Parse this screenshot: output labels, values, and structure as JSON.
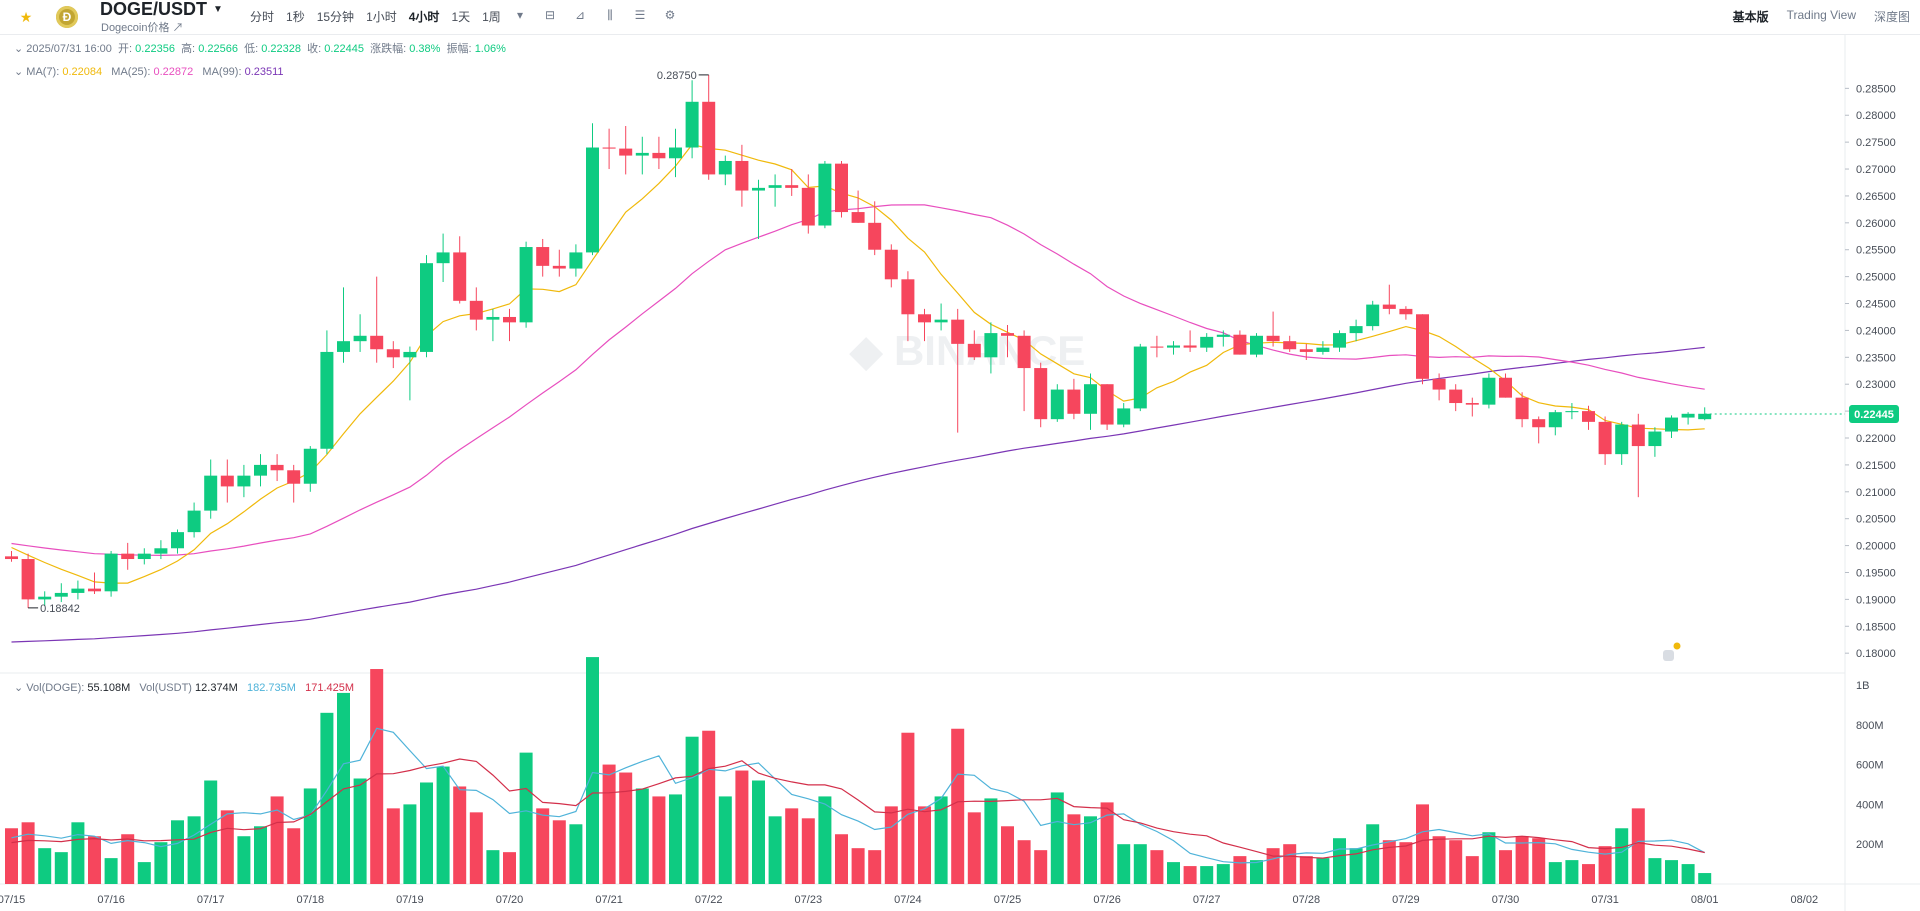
{
  "header": {
    "pair": "DOGE/USDT",
    "subtitle": "Dogecoin价格",
    "intervals": [
      "分时",
      "1秒",
      "15分钟",
      "1小时",
      "4小时",
      "1天",
      "1周"
    ],
    "active_interval": "4小时",
    "views": [
      "基本版",
      "Trading View",
      "深度图"
    ],
    "active_view": "基本版"
  },
  "ohlc_line": {
    "time": "2025/07/31 16:00",
    "open_label": "开:",
    "open": "0.22356",
    "high_label": "高:",
    "high": "0.22566",
    "low_label": "低:",
    "low": "0.22328",
    "close_label": "收:",
    "close": "0.22445",
    "change_label": "涨跌幅:",
    "change": "0.38%",
    "amp_label": "振幅:",
    "amp": "1.06%"
  },
  "ma_line": {
    "ma7_label": "MA(7):",
    "ma7": "0.22084",
    "ma25_label": "MA(25):",
    "ma25": "0.22872",
    "ma99_label": "MA(99):",
    "ma99": "0.23511"
  },
  "vol_line": {
    "vol_doge_label": "Vol(DOGE):",
    "vol_doge": "55.108M",
    "vol_usdt_label": "Vol(USDT)",
    "vol_usdt": "12.374M",
    "ma_a": "182.735M",
    "ma_b": "171.425M"
  },
  "colors": {
    "up": "#0ecb81",
    "down": "#f6465d",
    "ma7": "#f0b90b",
    "ma25": "#e84fbf",
    "ma99": "#7b36b5",
    "volma_a": "#4fb3d9",
    "volma_b": "#d32f4a"
  },
  "chart_data": {
    "type": "candlestick",
    "price_axis": {
      "ticks": [
        "0.28500",
        "0.28000",
        "0.27500",
        "0.27000",
        "0.26500",
        "0.26000",
        "0.25500",
        "0.25000",
        "0.24500",
        "0.24000",
        "0.23500",
        "0.23000",
        "0.22500",
        "0.22000",
        "0.21500",
        "0.21000",
        "0.20500",
        "0.20000",
        "0.19500",
        "0.19000",
        "0.18500",
        "0.18000"
      ],
      "range": [
        0.1765,
        0.2925
      ]
    },
    "current_price": "0.22445",
    "high_marker": "0.28750",
    "low_marker": "0.18842",
    "volume_axis": {
      "ticks": [
        "1B",
        "800M",
        "600M",
        "400M",
        "200M"
      ],
      "max": 1.05
    },
    "date_labels": [
      "07/15",
      "07/16",
      "07/17",
      "07/18",
      "07/19",
      "07/20",
      "07/21",
      "07/22",
      "07/23",
      "07/24",
      "07/25",
      "07/26",
      "07/27",
      "07/28",
      "07/29",
      "07/30",
      "07/31",
      "08/01",
      "08/02"
    ],
    "date_label_pos": [
      0,
      6,
      12,
      18,
      24,
      30,
      36,
      42,
      48,
      54,
      60,
      66,
      72,
      78,
      84,
      90,
      96,
      102,
      108
    ],
    "candles": [
      {
        "o": 0.198,
        "h": 0.199,
        "l": 0.197,
        "c": 0.1975,
        "v": 0.28
      },
      {
        "o": 0.1975,
        "h": 0.1985,
        "l": 0.1884,
        "c": 0.19,
        "v": 0.31
      },
      {
        "o": 0.19,
        "h": 0.1915,
        "l": 0.1888,
        "c": 0.1905,
        "v": 0.18
      },
      {
        "o": 0.1905,
        "h": 0.193,
        "l": 0.1895,
        "c": 0.1912,
        "v": 0.16
      },
      {
        "o": 0.1912,
        "h": 0.1935,
        "l": 0.19,
        "c": 0.192,
        "v": 0.31
      },
      {
        "o": 0.192,
        "h": 0.195,
        "l": 0.191,
        "c": 0.1915,
        "v": 0.24
      },
      {
        "o": 0.1915,
        "h": 0.199,
        "l": 0.1905,
        "c": 0.1985,
        "v": 0.13
      },
      {
        "o": 0.1985,
        "h": 0.2005,
        "l": 0.1955,
        "c": 0.1975,
        "v": 0.25
      },
      {
        "o": 0.1975,
        "h": 0.1995,
        "l": 0.1965,
        "c": 0.1985,
        "v": 0.11
      },
      {
        "o": 0.1985,
        "h": 0.201,
        "l": 0.1975,
        "c": 0.1995,
        "v": 0.21
      },
      {
        "o": 0.1995,
        "h": 0.203,
        "l": 0.1985,
        "c": 0.2025,
        "v": 0.32
      },
      {
        "o": 0.2025,
        "h": 0.208,
        "l": 0.2015,
        "c": 0.2065,
        "v": 0.34
      },
      {
        "o": 0.2065,
        "h": 0.216,
        "l": 0.205,
        "c": 0.213,
        "v": 0.52
      },
      {
        "o": 0.213,
        "h": 0.216,
        "l": 0.208,
        "c": 0.211,
        "v": 0.37
      },
      {
        "o": 0.211,
        "h": 0.215,
        "l": 0.209,
        "c": 0.213,
        "v": 0.24
      },
      {
        "o": 0.213,
        "h": 0.217,
        "l": 0.211,
        "c": 0.215,
        "v": 0.29
      },
      {
        "o": 0.215,
        "h": 0.217,
        "l": 0.212,
        "c": 0.214,
        "v": 0.44
      },
      {
        "o": 0.214,
        "h": 0.215,
        "l": 0.208,
        "c": 0.2115,
        "v": 0.28
      },
      {
        "o": 0.2115,
        "h": 0.2185,
        "l": 0.21,
        "c": 0.218,
        "v": 0.48
      },
      {
        "o": 0.218,
        "h": 0.24,
        "l": 0.217,
        "c": 0.236,
        "v": 0.86
      },
      {
        "o": 0.236,
        "h": 0.248,
        "l": 0.234,
        "c": 0.238,
        "v": 0.96
      },
      {
        "o": 0.238,
        "h": 0.243,
        "l": 0.236,
        "c": 0.239,
        "v": 0.53
      },
      {
        "o": 0.239,
        "h": 0.25,
        "l": 0.234,
        "c": 0.2365,
        "v": 1.08
      },
      {
        "o": 0.2365,
        "h": 0.238,
        "l": 0.233,
        "c": 0.235,
        "v": 0.38
      },
      {
        "o": 0.235,
        "h": 0.237,
        "l": 0.227,
        "c": 0.236,
        "v": 0.4
      },
      {
        "o": 0.236,
        "h": 0.254,
        "l": 0.235,
        "c": 0.2525,
        "v": 0.51
      },
      {
        "o": 0.2525,
        "h": 0.258,
        "l": 0.249,
        "c": 0.2545,
        "v": 0.59
      },
      {
        "o": 0.2545,
        "h": 0.2575,
        "l": 0.245,
        "c": 0.2455,
        "v": 0.49
      },
      {
        "o": 0.2455,
        "h": 0.248,
        "l": 0.24,
        "c": 0.242,
        "v": 0.36
      },
      {
        "o": 0.242,
        "h": 0.244,
        "l": 0.238,
        "c": 0.2425,
        "v": 0.17
      },
      {
        "o": 0.2425,
        "h": 0.244,
        "l": 0.238,
        "c": 0.2415,
        "v": 0.16
      },
      {
        "o": 0.2415,
        "h": 0.2565,
        "l": 0.2405,
        "c": 0.2555,
        "v": 0.66
      },
      {
        "o": 0.2555,
        "h": 0.257,
        "l": 0.25,
        "c": 0.252,
        "v": 0.38
      },
      {
        "o": 0.252,
        "h": 0.255,
        "l": 0.25,
        "c": 0.2515,
        "v": 0.32
      },
      {
        "o": 0.2515,
        "h": 0.256,
        "l": 0.25,
        "c": 0.2545,
        "v": 0.3
      },
      {
        "o": 0.2545,
        "h": 0.2785,
        "l": 0.254,
        "c": 0.274,
        "v": 1.14
      },
      {
        "o": 0.274,
        "h": 0.2775,
        "l": 0.27,
        "c": 0.2738,
        "v": 0.6
      },
      {
        "o": 0.2738,
        "h": 0.278,
        "l": 0.269,
        "c": 0.2725,
        "v": 0.56
      },
      {
        "o": 0.2725,
        "h": 0.276,
        "l": 0.269,
        "c": 0.273,
        "v": 0.48
      },
      {
        "o": 0.273,
        "h": 0.276,
        "l": 0.27,
        "c": 0.272,
        "v": 0.44
      },
      {
        "o": 0.272,
        "h": 0.2775,
        "l": 0.2685,
        "c": 0.274,
        "v": 0.45
      },
      {
        "o": 0.274,
        "h": 0.2865,
        "l": 0.272,
        "c": 0.2825,
        "v": 0.74
      },
      {
        "o": 0.2825,
        "h": 0.2875,
        "l": 0.268,
        "c": 0.269,
        "v": 0.77
      },
      {
        "o": 0.269,
        "h": 0.2725,
        "l": 0.267,
        "c": 0.2715,
        "v": 0.44
      },
      {
        "o": 0.2715,
        "h": 0.2745,
        "l": 0.263,
        "c": 0.266,
        "v": 0.57
      },
      {
        "o": 0.266,
        "h": 0.268,
        "l": 0.257,
        "c": 0.2665,
        "v": 0.52
      },
      {
        "o": 0.2665,
        "h": 0.269,
        "l": 0.263,
        "c": 0.267,
        "v": 0.34
      },
      {
        "o": 0.267,
        "h": 0.27,
        "l": 0.265,
        "c": 0.2665,
        "v": 0.38
      },
      {
        "o": 0.2665,
        "h": 0.269,
        "l": 0.258,
        "c": 0.2595,
        "v": 0.33
      },
      {
        "o": 0.2595,
        "h": 0.2715,
        "l": 0.259,
        "c": 0.271,
        "v": 0.44
      },
      {
        "o": 0.271,
        "h": 0.2715,
        "l": 0.261,
        "c": 0.262,
        "v": 0.25
      },
      {
        "o": 0.262,
        "h": 0.266,
        "l": 0.26,
        "c": 0.26,
        "v": 0.18
      },
      {
        "o": 0.26,
        "h": 0.264,
        "l": 0.254,
        "c": 0.255,
        "v": 0.17
      },
      {
        "o": 0.255,
        "h": 0.256,
        "l": 0.248,
        "c": 0.2495,
        "v": 0.39
      },
      {
        "o": 0.2495,
        "h": 0.251,
        "l": 0.238,
        "c": 0.243,
        "v": 0.76
      },
      {
        "o": 0.243,
        "h": 0.244,
        "l": 0.238,
        "c": 0.2415,
        "v": 0.39
      },
      {
        "o": 0.2415,
        "h": 0.245,
        "l": 0.24,
        "c": 0.242,
        "v": 0.44
      },
      {
        "o": 0.242,
        "h": 0.244,
        "l": 0.221,
        "c": 0.2375,
        "v": 0.78
      },
      {
        "o": 0.2375,
        "h": 0.24,
        "l": 0.2345,
        "c": 0.235,
        "v": 0.36
      },
      {
        "o": 0.235,
        "h": 0.2415,
        "l": 0.232,
        "c": 0.2395,
        "v": 0.43
      },
      {
        "o": 0.2395,
        "h": 0.241,
        "l": 0.235,
        "c": 0.239,
        "v": 0.29
      },
      {
        "o": 0.239,
        "h": 0.24,
        "l": 0.225,
        "c": 0.233,
        "v": 0.22
      },
      {
        "o": 0.233,
        "h": 0.234,
        "l": 0.222,
        "c": 0.2235,
        "v": 0.17
      },
      {
        "o": 0.2235,
        "h": 0.23,
        "l": 0.223,
        "c": 0.229,
        "v": 0.46
      },
      {
        "o": 0.229,
        "h": 0.231,
        "l": 0.2235,
        "c": 0.2245,
        "v": 0.35
      },
      {
        "o": 0.2245,
        "h": 0.232,
        "l": 0.2215,
        "c": 0.23,
        "v": 0.34
      },
      {
        "o": 0.23,
        "h": 0.23,
        "l": 0.2215,
        "c": 0.2225,
        "v": 0.41
      },
      {
        "o": 0.2225,
        "h": 0.2265,
        "l": 0.222,
        "c": 0.2255,
        "v": 0.2
      },
      {
        "o": 0.2255,
        "h": 0.2375,
        "l": 0.225,
        "c": 0.237,
        "v": 0.2
      },
      {
        "o": 0.237,
        "h": 0.239,
        "l": 0.235,
        "c": 0.2368,
        "v": 0.17
      },
      {
        "o": 0.2368,
        "h": 0.238,
        "l": 0.2355,
        "c": 0.2372,
        "v": 0.11
      },
      {
        "o": 0.2372,
        "h": 0.24,
        "l": 0.236,
        "c": 0.2368,
        "v": 0.09
      },
      {
        "o": 0.2368,
        "h": 0.2395,
        "l": 0.236,
        "c": 0.2388,
        "v": 0.09
      },
      {
        "o": 0.2388,
        "h": 0.24,
        "l": 0.237,
        "c": 0.2392,
        "v": 0.1
      },
      {
        "o": 0.2392,
        "h": 0.24,
        "l": 0.2355,
        "c": 0.2355,
        "v": 0.14
      },
      {
        "o": 0.2355,
        "h": 0.2395,
        "l": 0.235,
        "c": 0.239,
        "v": 0.12
      },
      {
        "o": 0.239,
        "h": 0.2435,
        "l": 0.237,
        "c": 0.238,
        "v": 0.18
      },
      {
        "o": 0.238,
        "h": 0.239,
        "l": 0.236,
        "c": 0.2365,
        "v": 0.2
      },
      {
        "o": 0.2365,
        "h": 0.2375,
        "l": 0.2345,
        "c": 0.236,
        "v": 0.14
      },
      {
        "o": 0.236,
        "h": 0.238,
        "l": 0.2355,
        "c": 0.2368,
        "v": 0.13
      },
      {
        "o": 0.2368,
        "h": 0.24,
        "l": 0.236,
        "c": 0.2395,
        "v": 0.23
      },
      {
        "o": 0.2395,
        "h": 0.242,
        "l": 0.238,
        "c": 0.2408,
        "v": 0.18
      },
      {
        "o": 0.2408,
        "h": 0.2455,
        "l": 0.24,
        "c": 0.2448,
        "v": 0.3
      },
      {
        "o": 0.2448,
        "h": 0.2485,
        "l": 0.243,
        "c": 0.244,
        "v": 0.22
      },
      {
        "o": 0.244,
        "h": 0.2445,
        "l": 0.242,
        "c": 0.243,
        "v": 0.21
      },
      {
        "o": 0.243,
        "h": 0.243,
        "l": 0.23,
        "c": 0.231,
        "v": 0.4
      },
      {
        "o": 0.231,
        "h": 0.232,
        "l": 0.227,
        "c": 0.229,
        "v": 0.24
      },
      {
        "o": 0.229,
        "h": 0.23,
        "l": 0.225,
        "c": 0.2265,
        "v": 0.22
      },
      {
        "o": 0.2265,
        "h": 0.2275,
        "l": 0.224,
        "c": 0.2262,
        "v": 0.14
      },
      {
        "o": 0.2262,
        "h": 0.232,
        "l": 0.2255,
        "c": 0.2312,
        "v": 0.26
      },
      {
        "o": 0.2312,
        "h": 0.232,
        "l": 0.2275,
        "c": 0.2275,
        "v": 0.17
      },
      {
        "o": 0.2275,
        "h": 0.2285,
        "l": 0.222,
        "c": 0.2235,
        "v": 0.24
      },
      {
        "o": 0.2235,
        "h": 0.224,
        "l": 0.219,
        "c": 0.222,
        "v": 0.23
      },
      {
        "o": 0.222,
        "h": 0.2252,
        "l": 0.2205,
        "c": 0.2248,
        "v": 0.11
      },
      {
        "o": 0.2248,
        "h": 0.2265,
        "l": 0.2235,
        "c": 0.225,
        "v": 0.12
      },
      {
        "o": 0.225,
        "h": 0.226,
        "l": 0.2215,
        "c": 0.223,
        "v": 0.1
      },
      {
        "o": 0.223,
        "h": 0.224,
        "l": 0.215,
        "c": 0.217,
        "v": 0.19
      },
      {
        "o": 0.217,
        "h": 0.223,
        "l": 0.215,
        "c": 0.2225,
        "v": 0.28
      },
      {
        "o": 0.2225,
        "h": 0.2245,
        "l": 0.209,
        "c": 0.2185,
        "v": 0.38
      },
      {
        "o": 0.2185,
        "h": 0.222,
        "l": 0.2165,
        "c": 0.2212,
        "v": 0.13
      },
      {
        "o": 0.2212,
        "h": 0.2242,
        "l": 0.22,
        "c": 0.2238,
        "v": 0.12
      },
      {
        "o": 0.2238,
        "h": 0.2248,
        "l": 0.2225,
        "c": 0.2245,
        "v": 0.1
      },
      {
        "o": 0.2235,
        "h": 0.2257,
        "l": 0.2233,
        "c": 0.2245,
        "v": 0.055
      }
    ]
  }
}
